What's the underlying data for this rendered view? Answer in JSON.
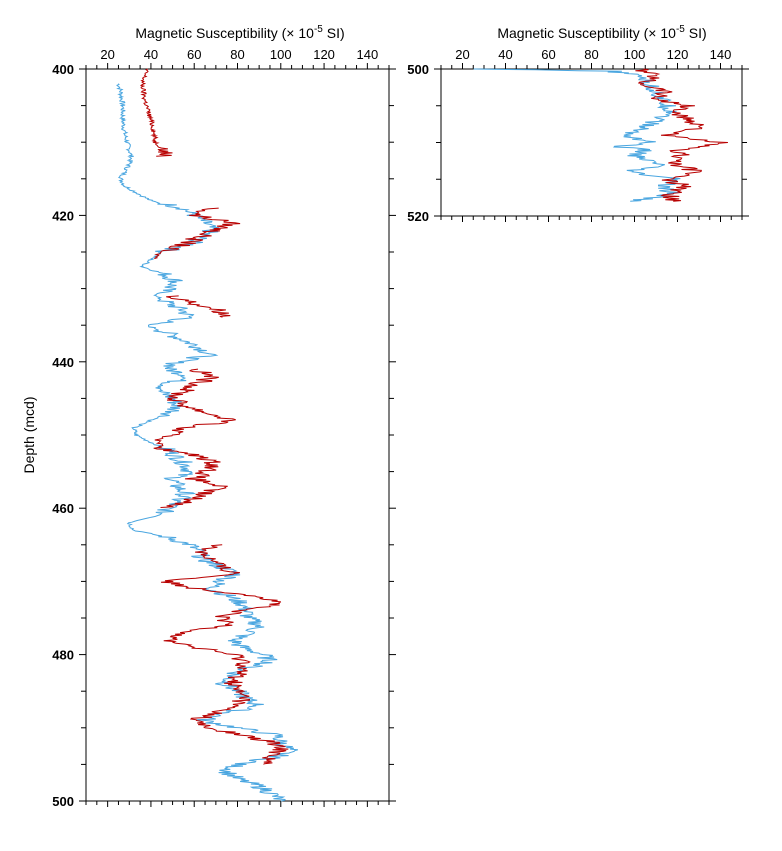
{
  "chart_data": [
    {
      "type": "line",
      "panel": "left",
      "xlabel": "Magnetic Susceptibility (× 10",
      "xlabel_exp": "-5",
      "xlabel_unit": " SI)",
      "ylabel": "Depth (mcd)",
      "xlim": [
        10,
        150
      ],
      "ylim": [
        400,
        500
      ],
      "y_inverted": true,
      "x_ticks": [
        20,
        40,
        60,
        80,
        100,
        120,
        140
      ],
      "x_tick_labels": [
        "20",
        "40",
        "60",
        "80",
        "100",
        "120",
        "140"
      ],
      "y_ticks": [
        400,
        420,
        440,
        460,
        480,
        500
      ],
      "y_tick_labels": [
        "400",
        "420",
        "440",
        "460",
        "480",
        "500"
      ],
      "grid": false,
      "series": [
        {
          "color": "#4aa6e0",
          "depth": [
            402,
            403,
            405,
            407,
            409,
            410,
            412,
            413,
            415,
            416,
            418,
            419,
            420,
            421,
            422,
            423,
            424,
            425,
            426,
            427,
            428,
            429,
            430,
            431,
            432,
            433,
            434,
            435,
            436,
            437,
            438,
            439,
            440,
            441,
            442,
            443,
            444,
            445,
            446,
            447,
            448,
            449,
            450,
            451,
            452,
            453,
            454,
            455,
            456,
            457,
            458,
            459,
            460,
            461,
            462,
            463,
            464,
            465,
            466,
            467,
            468,
            469,
            470,
            471,
            472,
            473,
            474,
            475,
            476,
            477,
            478,
            479,
            480,
            481,
            482,
            483,
            484,
            485,
            486,
            487,
            488,
            489,
            490,
            491,
            492,
            493,
            494,
            495,
            496,
            497,
            498,
            499,
            500
          ],
          "values": [
            25,
            26,
            27,
            27,
            28,
            29,
            31,
            30,
            26,
            28,
            40,
            55,
            60,
            65,
            68,
            63,
            58,
            45,
            40,
            36,
            46,
            52,
            48,
            42,
            48,
            55,
            58,
            38,
            47,
            55,
            62,
            68,
            52,
            48,
            58,
            48,
            44,
            50,
            52,
            50,
            40,
            32,
            33,
            40,
            48,
            52,
            56,
            58,
            50,
            52,
            56,
            52,
            48,
            44,
            30,
            32,
            48,
            58,
            62,
            64,
            72,
            80,
            72,
            68,
            76,
            82,
            84,
            85,
            90,
            86,
            78,
            82,
            92,
            95,
            82,
            77,
            74,
            80,
            84,
            90,
            74,
            64,
            80,
            98,
            100,
            104,
            98,
            80,
            75,
            80,
            90,
            96,
            100
          ]
        },
        {
          "color": "#b80000",
          "depth": [
            400,
            402,
            404,
            406,
            408,
            410,
            411,
            412,
            419,
            420,
            421,
            422,
            423,
            424,
            425,
            426,
            431,
            432,
            433,
            434,
            441,
            442,
            443,
            444,
            445,
            446,
            447,
            448,
            449,
            450,
            451,
            452,
            453,
            454,
            455,
            456,
            457,
            458,
            459,
            460,
            465,
            466,
            467,
            468,
            469,
            470,
            471,
            472,
            473,
            474,
            475,
            476,
            477,
            478,
            479,
            480,
            481,
            482,
            483,
            484,
            485,
            486,
            487,
            488,
            489,
            490,
            491,
            492,
            493,
            494,
            495
          ],
          "values": [
            38,
            36,
            37,
            39,
            41,
            42,
            46,
            47,
            68,
            60,
            78,
            70,
            62,
            55,
            44,
            42,
            50,
            60,
            72,
            76,
            60,
            68,
            62,
            55,
            50,
            56,
            66,
            78,
            55,
            48,
            44,
            46,
            64,
            70,
            66,
            60,
            72,
            64,
            58,
            48,
            70,
            64,
            68,
            72,
            80,
            46,
            62,
            90,
            100,
            80,
            72,
            76,
            56,
            48,
            60,
            78,
            84,
            82,
            80,
            78,
            80,
            84,
            78,
            70,
            60,
            66,
            82,
            96,
            100,
            96,
            92
          ]
        }
      ]
    },
    {
      "type": "line",
      "panel": "right",
      "xlabel": "Magnetic Susceptibility (× 10",
      "xlabel_exp": "-5",
      "xlabel_unit": " SI)",
      "xlim": [
        10,
        150
      ],
      "ylim": [
        500,
        520
      ],
      "y_inverted": true,
      "x_ticks": [
        20,
        40,
        60,
        80,
        100,
        120,
        140
      ],
      "x_tick_labels": [
        "20",
        "40",
        "60",
        "80",
        "100",
        "120",
        "140"
      ],
      "y_ticks": [
        500,
        520
      ],
      "y_tick_labels": [
        "500",
        "520"
      ],
      "grid": false,
      "series": [
        {
          "color": "#4aa6e0",
          "depth": [
            500,
            500.3,
            500.6,
            501,
            502,
            503,
            504,
            505,
            506,
            507,
            508,
            509,
            510,
            510.5,
            511,
            512,
            513,
            514,
            515,
            516,
            517,
            518
          ],
          "values": [
            25,
            90,
            95,
            104,
            106,
            110,
            112,
            115,
            118,
            110,
            104,
            96,
            108,
            92,
            104,
            100,
            112,
            96,
            120,
            112,
            118,
            98
          ]
        },
        {
          "color": "#b80000",
          "depth": [
            500,
            501,
            502,
            503,
            504,
            505,
            506,
            507,
            508,
            509,
            510,
            511,
            512,
            513,
            514,
            515,
            516,
            517,
            518
          ],
          "values": [
            102,
            110,
            104,
            115,
            110,
            124,
            118,
            126,
            132,
            112,
            140,
            120,
            122,
            118,
            130,
            114,
            124,
            116,
            118
          ]
        }
      ]
    }
  ]
}
